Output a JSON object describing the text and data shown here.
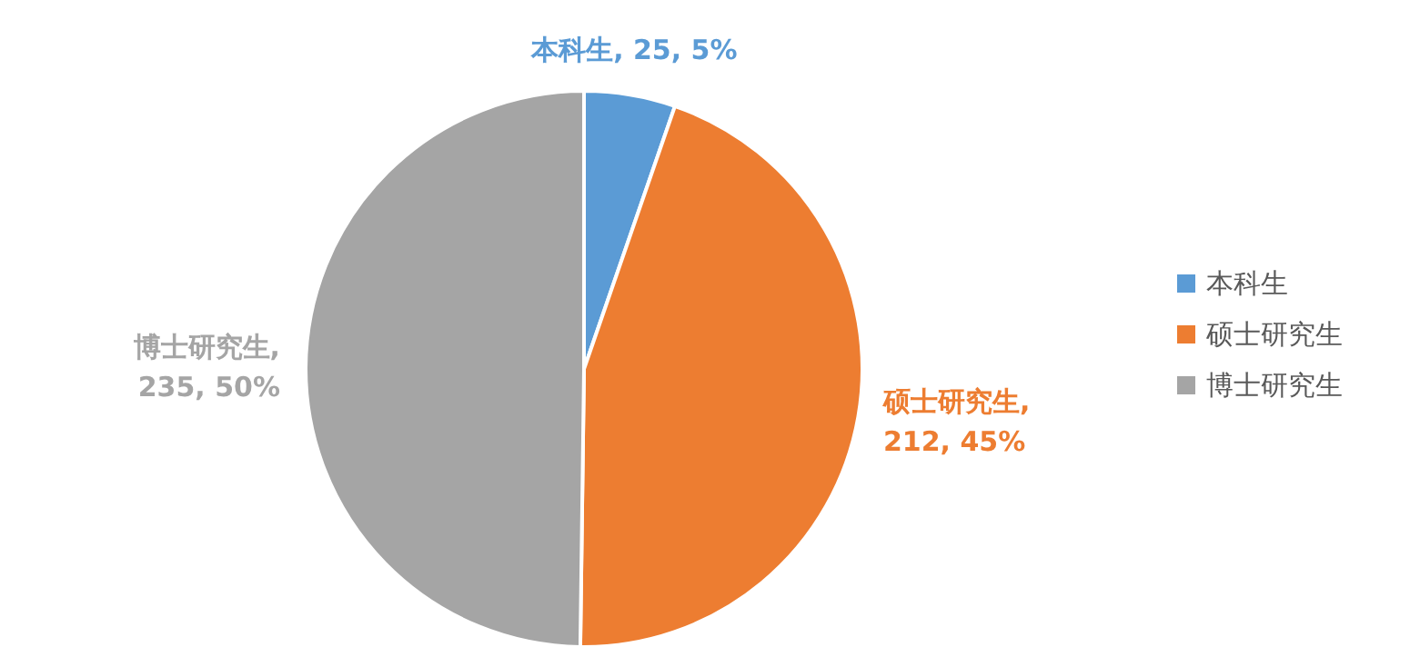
{
  "chart_data": {
    "type": "pie",
    "categories": [
      "本科生",
      "硕士研究生",
      "博士研究生"
    ],
    "values": [
      25,
      212,
      235
    ],
    "value_labels": [
      "本科生, 25, 5%",
      "硕士研究生, 212, 45%",
      "博士研究生, 235, 50%"
    ],
    "colors": [
      "#5b9bd5",
      "#ed7d31",
      "#a5a5a5"
    ],
    "legend": "right"
  }
}
